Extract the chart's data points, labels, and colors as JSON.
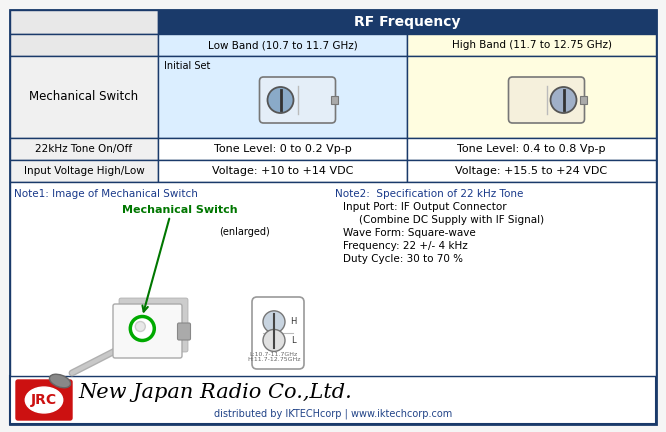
{
  "bg_color": "#f5f5f5",
  "border_color": "#1a3a6a",
  "header_bg": "#1a3a6a",
  "header_text_color": "#ffffff",
  "low_band_bg": "#dbeeff",
  "high_band_bg": "#fffde0",
  "row_bg_light": "#f2f2f2",
  "row_bg_white": "#ffffff",
  "note_blue": "#1a3a8a",
  "note_green": "#007700",
  "jrc_red": "#cc1111",
  "title": "RF Frequency",
  "col2_header": "Low Band (10.7 to 11.7 GHz)",
  "col3_header": "High Band (11.7 to 12.75 GHz)",
  "row1_label": "Mechanical Switch",
  "row1_col2_tag": "Initial Set",
  "row2_label": "22kHz Tone On/Off",
  "row2_col2": "Tone Level: 0 to 0.2 Vp-p",
  "row2_col3": "Tone Level: 0.4 to 0.8 Vp-p",
  "row3_label": "Input Voltage High/Low",
  "row3_col2": "Voltage: +10 to +14 VDC",
  "row3_col3": "Voltage: +15.5 to +24 VDC",
  "note1_title": "Note1: Image of Mechanical Switch",
  "note1_label": "Mechanical Switch",
  "note1_sublabel": "(enlarged)",
  "note2_title": "Note2:  Specification of 22 kHz Tone",
  "note2_line1": "Input Port: IF Output Connector",
  "note2_line2": "(Combine DC Supply with IF Signal)",
  "note2_line3": "Wave Form: Square-wave",
  "note2_line4": "Frequency: 22 +/- 4 kHz",
  "note2_line5": "Duty Cycle: 30 to 70 %",
  "footer_company": "New Japan Radio Co.,Ltd.",
  "footer_dist": "distributed by IKTECHcorp | www.iktechcorp.com",
  "jrc_text": "JRC",
  "enlarged_label_h": "H",
  "enlarged_label_l": "L",
  "enlarged_text1": "L:10.7-11.7GHz",
  "enlarged_text2": "H:11.7-12.75GHz"
}
